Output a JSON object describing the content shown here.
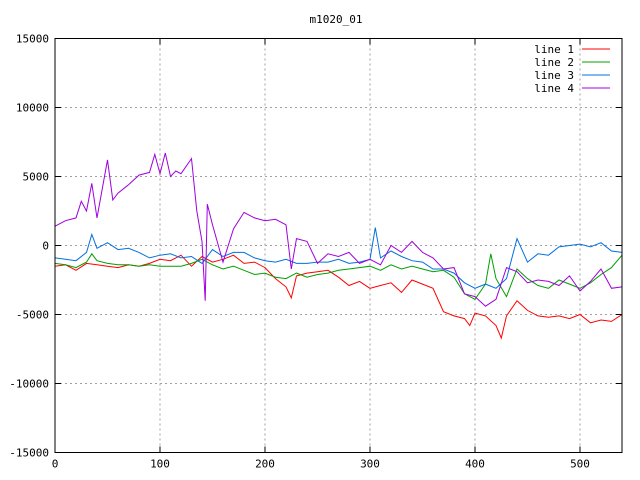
{
  "chart_data": {
    "type": "line",
    "title": "m1020_01",
    "xlabel": "",
    "ylabel": "",
    "xlim": [
      0,
      540
    ],
    "ylim": [
      -15000,
      15000
    ],
    "xticks": [
      0,
      100,
      200,
      300,
      400,
      500
    ],
    "yticks": [
      -15000,
      -10000,
      -5000,
      0,
      5000,
      10000,
      15000
    ],
    "grid": true,
    "legend_position": "top-right",
    "series": [
      {
        "name": "line 1",
        "color": "#ff0000",
        "x": [
          0,
          10,
          20,
          30,
          40,
          50,
          60,
          70,
          80,
          90,
          100,
          110,
          120,
          130,
          140,
          150,
          160,
          170,
          180,
          190,
          200,
          210,
          220,
          225,
          230,
          240,
          250,
          260,
          270,
          280,
          290,
          300,
          310,
          320,
          330,
          340,
          350,
          360,
          370,
          380,
          390,
          395,
          400,
          410,
          420,
          425,
          430,
          440,
          450,
          460,
          470,
          480,
          490,
          500,
          510,
          520,
          530,
          540
        ],
        "y": [
          -1500,
          -1400,
          -1800,
          -1300,
          -1400,
          -1500,
          -1600,
          -1400,
          -1500,
          -1300,
          -1000,
          -1100,
          -700,
          -1500,
          -800,
          -1200,
          -1000,
          -700,
          -1300,
          -1200,
          -1600,
          -2400,
          -3000,
          -3800,
          -2200,
          -2000,
          -1900,
          -1800,
          -2300,
          -2900,
          -2600,
          -3100,
          -2900,
          -2700,
          -3400,
          -2500,
          -2800,
          -3100,
          -4800,
          -5100,
          -5300,
          -5800,
          -4900,
          -5100,
          -5800,
          -6700,
          -5100,
          -4000,
          -4700,
          -5100,
          -5200,
          -5100,
          -5300,
          -5000,
          -5600,
          -5400,
          -5500,
          -5000
        ]
      },
      {
        "name": "line 2",
        "color": "#00a000",
        "x": [
          0,
          10,
          20,
          30,
          35,
          40,
          50,
          60,
          70,
          80,
          90,
          100,
          110,
          120,
          130,
          140,
          150,
          160,
          170,
          180,
          190,
          200,
          210,
          220,
          230,
          240,
          250,
          260,
          270,
          280,
          290,
          300,
          310,
          320,
          330,
          340,
          350,
          360,
          370,
          380,
          390,
          400,
          410,
          415,
          420,
          430,
          440,
          450,
          460,
          470,
          480,
          490,
          500,
          510,
          520,
          530,
          540
        ],
        "y": [
          -1300,
          -1400,
          -1600,
          -1200,
          -600,
          -1100,
          -1300,
          -1400,
          -1400,
          -1500,
          -1400,
          -1500,
          -1500,
          -1500,
          -1300,
          -1000,
          -1400,
          -1700,
          -1500,
          -1800,
          -2100,
          -2000,
          -2300,
          -2400,
          -2000,
          -2300,
          -2100,
          -2000,
          -1800,
          -1700,
          -1600,
          -1500,
          -1800,
          -1400,
          -1700,
          -1500,
          -1700,
          -1900,
          -1800,
          -2300,
          -3500,
          -3900,
          -2800,
          -600,
          -2400,
          -3700,
          -1700,
          -2400,
          -2900,
          -3100,
          -2500,
          -2800,
          -3100,
          -2700,
          -2100,
          -1600,
          -700
        ]
      },
      {
        "name": "line 3",
        "color": "#0070e0",
        "x": [
          0,
          10,
          20,
          30,
          35,
          40,
          50,
          60,
          70,
          80,
          90,
          100,
          110,
          120,
          130,
          140,
          150,
          160,
          170,
          180,
          190,
          200,
          210,
          220,
          230,
          240,
          250,
          260,
          270,
          280,
          290,
          300,
          305,
          310,
          320,
          330,
          340,
          350,
          360,
          370,
          380,
          390,
          400,
          410,
          420,
          430,
          440,
          450,
          460,
          470,
          480,
          490,
          500,
          510,
          520,
          530,
          540
        ],
        "y": [
          -900,
          -1000,
          -1100,
          -500,
          800,
          -200,
          200,
          -300,
          -200,
          -500,
          -900,
          -700,
          -600,
          -900,
          -800,
          -1300,
          -300,
          -800,
          -500,
          -500,
          -900,
          -1100,
          -1200,
          -1000,
          -1300,
          -1300,
          -1200,
          -1200,
          -1000,
          -1300,
          -1200,
          -1000,
          1300,
          -900,
          -400,
          -800,
          -1100,
          -1200,
          -1700,
          -1700,
          -2000,
          -2700,
          -3100,
          -2800,
          -3100,
          -2400,
          500,
          -1200,
          -600,
          -700,
          -100,
          0,
          100,
          -100,
          200,
          -400,
          -500
        ]
      },
      {
        "name": "line 4",
        "color": "#a000e0",
        "x": [
          0,
          10,
          20,
          25,
          30,
          35,
          40,
          50,
          55,
          60,
          70,
          80,
          90,
          95,
          100,
          105,
          110,
          115,
          120,
          130,
          135,
          140,
          143,
          145,
          150,
          160,
          170,
          180,
          190,
          200,
          210,
          220,
          225,
          230,
          240,
          250,
          260,
          270,
          280,
          290,
          300,
          310,
          320,
          330,
          340,
          350,
          360,
          370,
          380,
          390,
          400,
          410,
          420,
          430,
          440,
          450,
          460,
          470,
          480,
          490,
          500,
          510,
          520,
          530,
          540
        ],
        "y": [
          1400,
          1800,
          2000,
          3200,
          2500,
          4500,
          2000,
          6200,
          3300,
          3800,
          4400,
          5100,
          5300,
          6600,
          5200,
          6700,
          5000,
          5400,
          5200,
          6300,
          2500,
          300,
          -4000,
          3000,
          1500,
          -1200,
          1200,
          2400,
          2000,
          1800,
          1900,
          1500,
          -1700,
          500,
          300,
          -1300,
          -600,
          -800,
          -500,
          -1300,
          -1000,
          -1400,
          0,
          -500,
          300,
          -500,
          -900,
          -1700,
          -1600,
          -3500,
          -3700,
          -4400,
          -3900,
          -1600,
          -1900,
          -2700,
          -2500,
          -2600,
          -2900,
          -2200,
          -3300,
          -2600,
          -1700,
          -3100,
          -3000
        ]
      }
    ]
  }
}
